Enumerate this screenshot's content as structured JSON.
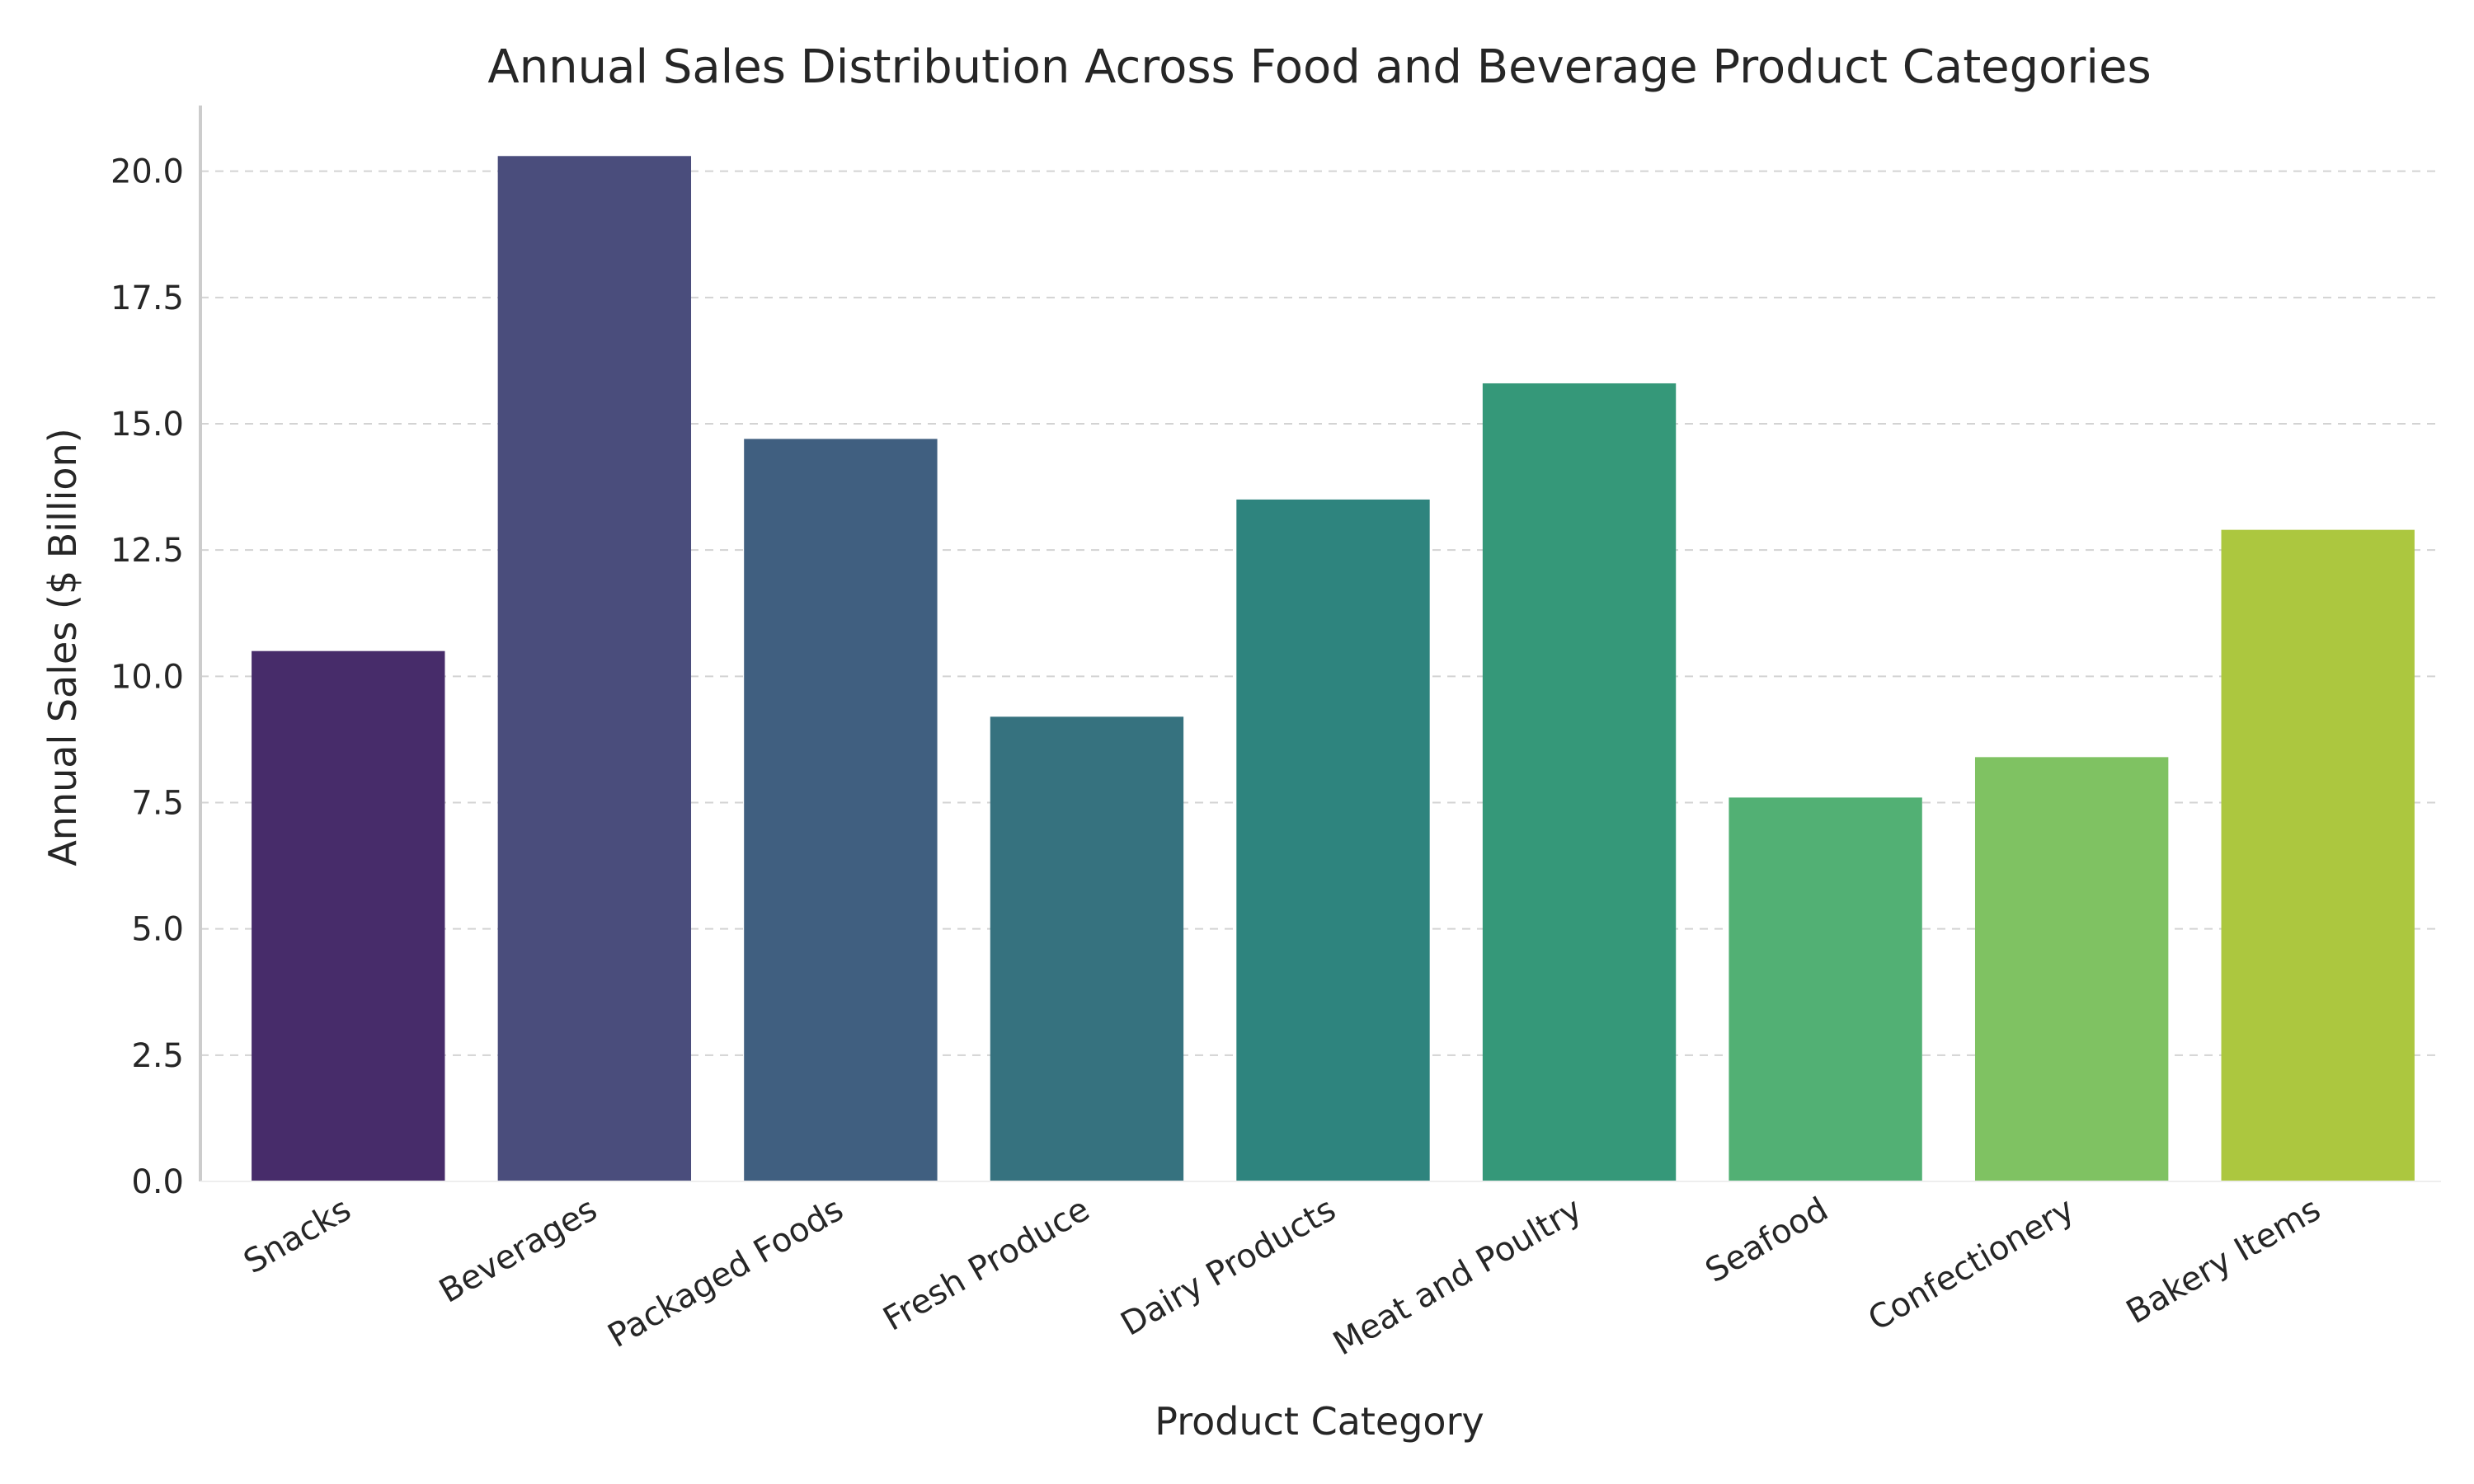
{
  "chart_data": {
    "type": "bar",
    "title": "Annual Sales Distribution Across Food and Beverage Product Categories",
    "xlabel": "Product Category",
    "ylabel": "Annual Sales ($ Billion)",
    "categories": [
      "Snacks",
      "Beverages",
      "Packaged Foods",
      "Fresh Produce",
      "Dairy Products",
      "Meat and Poultry",
      "Seafood",
      "Confectionery",
      "Bakery Items"
    ],
    "values": [
      10.5,
      20.3,
      14.7,
      9.2,
      13.5,
      15.8,
      7.6,
      8.4,
      12.9
    ],
    "colors": [
      "#472c6a",
      "#4a4d7c",
      "#405f80",
      "#36727f",
      "#2e847e",
      "#359879",
      "#52b074",
      "#7fc262",
      "#acc73f"
    ],
    "ylim": [
      0,
      21.3
    ],
    "yticks": [
      "0.0",
      "2.5",
      "5.0",
      "7.5",
      "10.0",
      "12.5",
      "15.0",
      "17.5",
      "20.0"
    ],
    "grid": "y-dashed",
    "legend": "none"
  }
}
